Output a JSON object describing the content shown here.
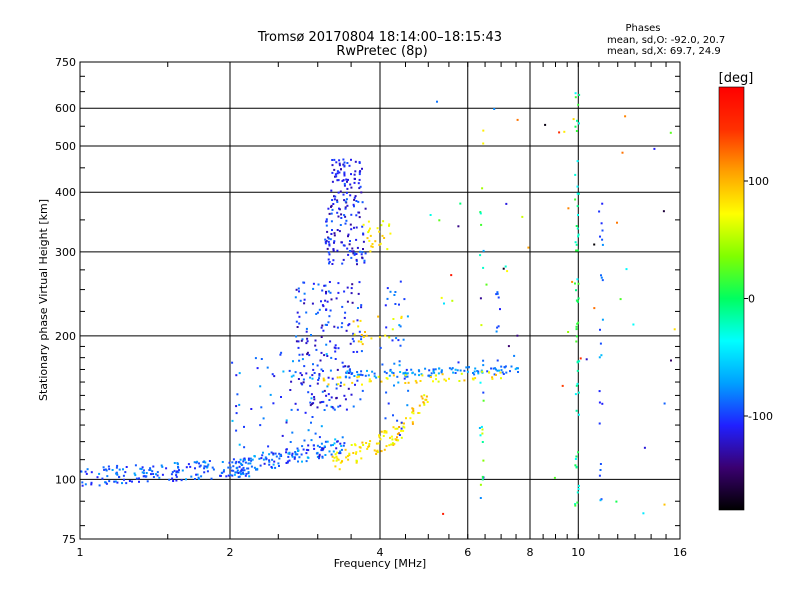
{
  "title": "Tromsø 20170804 18:14:00–18:15:43",
  "subtitle": "RwPretec (8p)",
  "stats": {
    "header": "Phases",
    "line_o": "mean, sd,O: -92.0, 20.7",
    "line_x": "mean, sd,X:  69.7, 24.9"
  },
  "chart_data": {
    "type": "scatter",
    "xlabel": "Frequency [MHz]",
    "ylabel": "Stationary phase Virtual Height [km]",
    "xscale": "log",
    "yscale": "log",
    "xlim": [
      1,
      16
    ],
    "ylim": [
      75,
      750
    ],
    "x_ticks": [
      1,
      2,
      4,
      6,
      8,
      10,
      16
    ],
    "y_ticks": [
      75,
      100,
      200,
      300,
      400,
      500,
      600,
      750
    ],
    "grid": true,
    "colorbar": {
      "label": "[deg]",
      "range": [
        -180,
        180
      ],
      "ticks": [
        100,
        0,
        -100
      ],
      "colormap": [
        "#000000",
        "#3a0070",
        "#2020ff",
        "#00a0ff",
        "#00ffff",
        "#00ff60",
        "#80ff00",
        "#ffff00",
        "#ffa000",
        "#ff3000",
        "#ff0000"
      ]
    },
    "point_groups": [
      {
        "kind": "trace",
        "xr": [
          1.0,
          2.2
        ],
        "y0": 101,
        "y1": 106,
        "jit": 0.045,
        "n": 170,
        "phase": [
          -110,
          -70
        ]
      },
      {
        "kind": "trace",
        "xr": [
          2.0,
          3.4
        ],
        "y0": 105,
        "y1": 118,
        "jit": 0.04,
        "n": 140,
        "phase": [
          -115,
          -60
        ]
      },
      {
        "kind": "trace",
        "xr": [
          3.2,
          4.4
        ],
        "y0": 108,
        "y1": 125,
        "jit": 0.05,
        "n": 70,
        "phase": [
          60,
          100
        ]
      },
      {
        "kind": "trace",
        "xr": [
          4.2,
          5.0
        ],
        "y0": 118,
        "y1": 150,
        "jit": 0.04,
        "n": 40,
        "phase": [
          60,
          110
        ]
      },
      {
        "kind": "cloud",
        "xr": [
          2.0,
          3.2
        ],
        "yr": [
          110,
          185
        ],
        "n": 90,
        "phase": [
          -125,
          -60
        ]
      },
      {
        "kind": "cloud",
        "xr": [
          2.7,
          3.7
        ],
        "yr": [
          140,
          260
        ],
        "n": 180,
        "phase": [
          -135,
          -80
        ]
      },
      {
        "kind": "cloud",
        "xr": [
          3.1,
          3.75
        ],
        "yr": [
          280,
          420
        ],
        "n": 140,
        "phase": [
          -135,
          -85
        ]
      },
      {
        "kind": "cloud",
        "xr": [
          3.2,
          3.7
        ],
        "yr": [
          420,
          470
        ],
        "n": 50,
        "phase": [
          -130,
          -95
        ]
      },
      {
        "kind": "cloud",
        "xr": [
          3.7,
          4.2
        ],
        "yr": [
          300,
          350
        ],
        "n": 25,
        "phase": [
          60,
          100
        ]
      },
      {
        "kind": "cloud",
        "xr": [
          3.5,
          4.5
        ],
        "yr": [
          190,
          220
        ],
        "n": 20,
        "phase": [
          60,
          100
        ]
      },
      {
        "kind": "cloud",
        "xr": [
          4.0,
          4.6
        ],
        "yr": [
          120,
          260
        ],
        "n": 40,
        "phase": [
          -110,
          -60
        ]
      },
      {
        "kind": "trace",
        "xr": [
          3.3,
          7.6
        ],
        "y0": 165,
        "y1": 170,
        "jit": 0.02,
        "n": 110,
        "phase": [
          -100,
          -60
        ]
      },
      {
        "kind": "trace",
        "xr": [
          3.0,
          7.0
        ],
        "y0": 160,
        "y1": 165,
        "jit": 0.02,
        "n": 50,
        "phase": [
          60,
          100
        ]
      },
      {
        "kind": "column",
        "x": 6.4,
        "yr": [
          90,
          640
        ],
        "n": 28,
        "phase": [
          -110,
          80
        ]
      },
      {
        "kind": "column",
        "x": 6.9,
        "yr": [
          180,
          250
        ],
        "n": 8,
        "phase": [
          -110,
          -70
        ]
      },
      {
        "kind": "column",
        "x": 9.95,
        "yr": [
          85,
          650
        ],
        "n": 60,
        "phase": [
          -40,
          20
        ]
      },
      {
        "kind": "column",
        "x": 11.1,
        "yr": [
          90,
          400
        ],
        "n": 24,
        "phase": [
          -110,
          -60
        ]
      },
      {
        "kind": "cloud",
        "xr": [
          5.0,
          16.0
        ],
        "yr": [
          80,
          620
        ],
        "n": 55,
        "phase": [
          -180,
          180
        ]
      }
    ]
  }
}
